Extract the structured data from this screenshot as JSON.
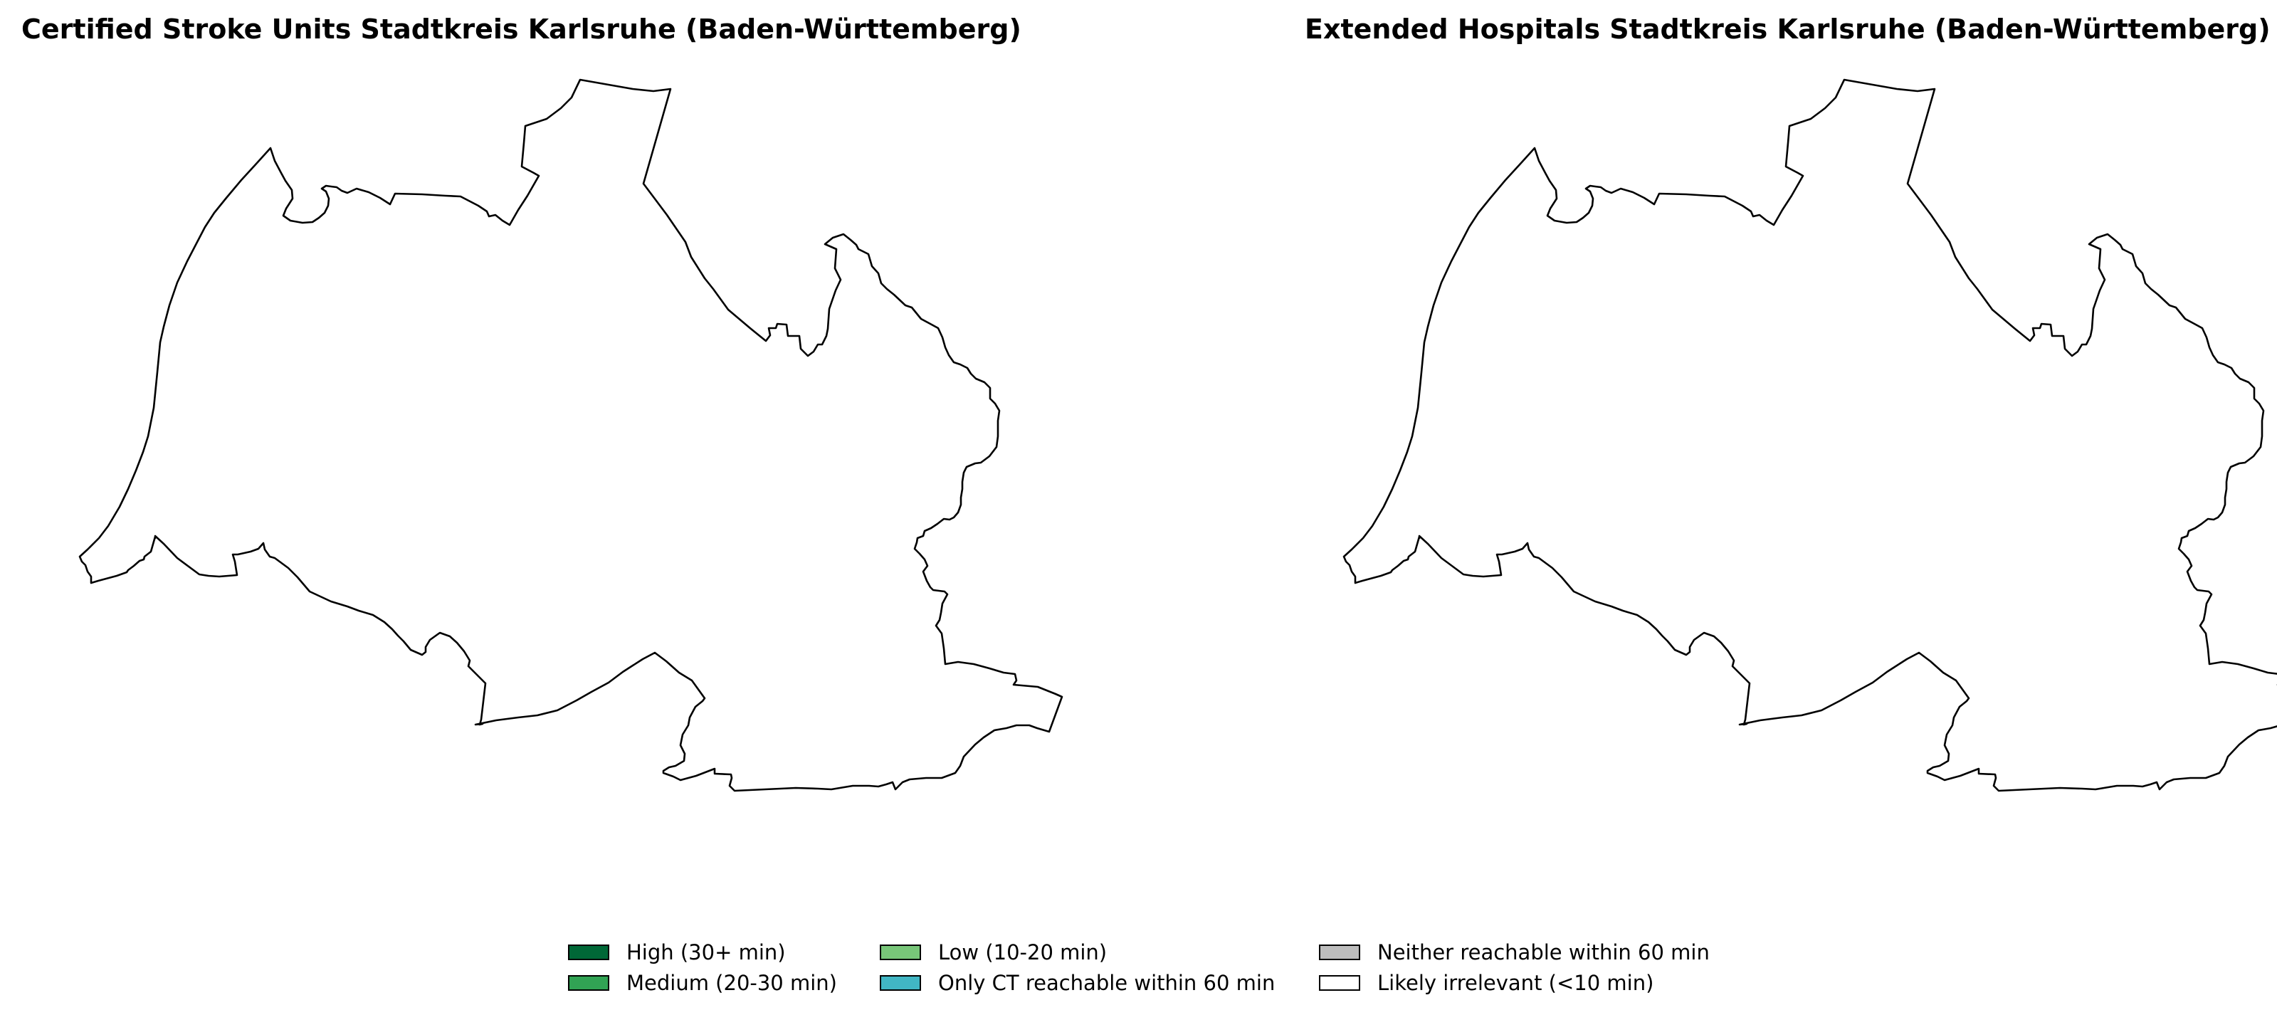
{
  "panels": [
    {
      "title": "Certified Stroke Units Stadtkreis Karlsruhe (Baden-Württemberg)",
      "region_fill": "#ffffff",
      "region_stroke": "#000000"
    },
    {
      "title": "Extended Hospitals Stadtkreis Karlsruhe (Baden-Württemberg)",
      "region_fill": "#ffffff",
      "region_stroke": "#000000"
    }
  ],
  "legend": {
    "items": [
      {
        "label": "High (30+ min)",
        "color": "#006837"
      },
      {
        "label": "Medium (20-30 min)",
        "color": "#31a354"
      },
      {
        "label": "Low (10-20 min)",
        "color": "#78c679"
      },
      {
        "label": "Only CT reachable within 60 min",
        "color": "#41b6c4"
      },
      {
        "label": "Neither reachable within 60 min",
        "color": "#bdbdbd"
      },
      {
        "label": "Likely irrelevant (<10 min)",
        "color": "#ffffff"
      }
    ]
  }
}
